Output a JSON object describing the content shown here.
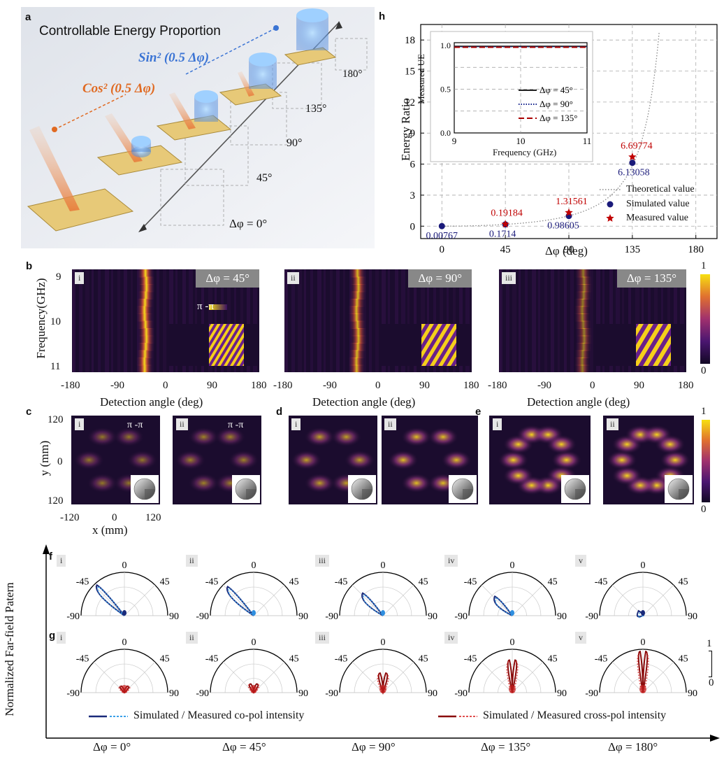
{
  "panel_a": {
    "label": "a",
    "title": "Controllable Energy Proportion",
    "sin_label": "Sin² (0.5 Δφ)",
    "cos_label": "Cos² (0.5 Δφ)",
    "angles": [
      "Δφ = 0°",
      "45°",
      "90°",
      "135°",
      "180°"
    ]
  },
  "panel_b": {
    "label": "b",
    "ylabel": "Frequency(GHz)",
    "xlabel": "Detection angle (deg)",
    "yticks": [
      "9",
      "10",
      "11"
    ],
    "xticks": [
      "-180",
      "-90",
      "0",
      "90",
      "180"
    ],
    "subplots": [
      {
        "tag": "i",
        "title": "Δφ = 45°",
        "inset": "π -π"
      },
      {
        "tag": "ii",
        "title": "Δφ = 90°"
      },
      {
        "tag": "iii",
        "title": "Δφ = 135°"
      }
    ],
    "colorbar": {
      "max": "1",
      "min": "0"
    }
  },
  "panel_c": {
    "label": "c",
    "ylabel": "y (mm)",
    "xlabel": "x (mm)",
    "yticks": [
      "120",
      "0",
      "120"
    ],
    "xticks": [
      "-120",
      "0",
      "120"
    ],
    "tags": [
      "i",
      "ii"
    ],
    "inset": "π -π"
  },
  "panel_d": {
    "label": "d",
    "tags": [
      "i",
      "ii"
    ]
  },
  "panel_e": {
    "label": "e",
    "tags": [
      "i",
      "ii"
    ],
    "colorbar": {
      "max": "1",
      "min": "0"
    }
  },
  "panel_f": {
    "label": "f",
    "tags": [
      "i",
      "ii",
      "iii",
      "iv",
      "v"
    ]
  },
  "panel_g": {
    "label": "g",
    "tags": [
      "i",
      "ii",
      "iii",
      "iv",
      "v"
    ],
    "scale": {
      "max": "1",
      "min": "0"
    }
  },
  "polar": {
    "ylabel": "Normalized Far-field Patern",
    "angle_labels": [
      "-90",
      "-45",
      "0",
      "45",
      "90"
    ],
    "legend_co": "Simulated / Measured co-pol intensity",
    "legend_cross": "Simulated / Measured cross-pol intensity",
    "bottom_labels": [
      "Δφ = 0°",
      "Δφ = 45°",
      "Δφ = 90°",
      "Δφ = 135°",
      "Δφ = 180°"
    ]
  },
  "chart_data": {
    "type": "scatter",
    "label": "h",
    "xlabel": "Δφ (deg)",
    "ylabel": "Energy Ratio",
    "xticks": [
      "0",
      "45",
      "90",
      "135",
      "180"
    ],
    "yticks": [
      "0",
      "3",
      "6",
      "9",
      "12",
      "15",
      "18"
    ],
    "xlim": [
      -15,
      195
    ],
    "ylim": [
      -1.2,
      19.5
    ],
    "series": [
      {
        "name": "Theoretical value",
        "kind": "dotted-line",
        "color": "#888888"
      },
      {
        "name": "Simulated value",
        "kind": "marker",
        "color": "#1a1a7a",
        "x": [
          0,
          45,
          90,
          135
        ],
        "values": [
          0.00767,
          0.1714,
          0.98605,
          6.13058
        ],
        "labels": [
          "0.00767",
          "0.1714",
          "0.98605",
          "6.13058"
        ]
      },
      {
        "name": "Measured value",
        "kind": "marker",
        "color": "#c00000",
        "x": [
          45,
          90,
          135
        ],
        "values": [
          0.19184,
          1.31561,
          6.69774
        ],
        "labels": [
          "0.19184",
          "1.31561",
          "6.69774"
        ]
      }
    ],
    "inset": {
      "xlabel": "Frequency (GHz)",
      "ylabel": "Measured UE",
      "xticks": [
        "9",
        "10",
        "11"
      ],
      "yticks": [
        "0.0",
        "0.5",
        "1.0"
      ],
      "legend": [
        "Δφ = 45°",
        "Δφ = 90°",
        "Δφ = 135°"
      ]
    }
  }
}
